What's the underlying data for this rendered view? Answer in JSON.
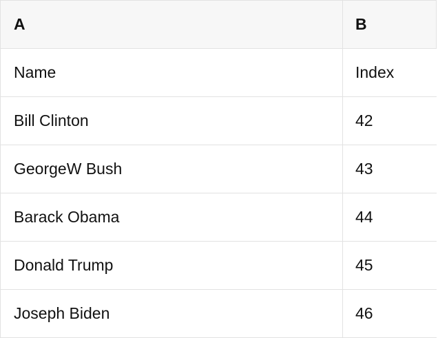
{
  "sheet": {
    "column_headers": [
      "A",
      "B"
    ],
    "first_row_labels": [
      "Name",
      "Index"
    ],
    "rows": [
      [
        "Name",
        "Index"
      ],
      [
        "Bill Clinton",
        "42"
      ],
      [
        "GeorgeW Bush",
        "43"
      ],
      [
        "Barack Obama",
        "44"
      ],
      [
        "Donald Trump",
        "45"
      ],
      [
        "Joseph Biden",
        "46"
      ]
    ],
    "colors": {
      "border": "#e2e2e2",
      "header_background": "#f7f7f7",
      "text": "#111111"
    }
  }
}
